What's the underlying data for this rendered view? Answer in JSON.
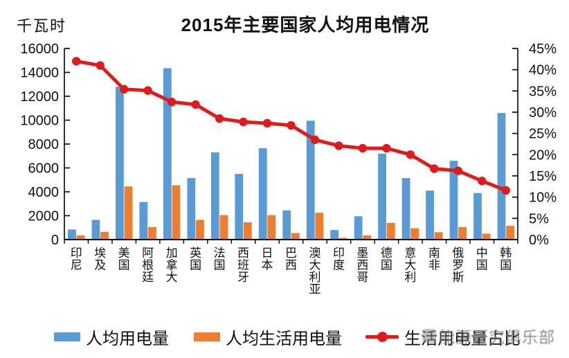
{
  "header": {
    "unit_label": "千瓦时",
    "title": "2015年主要国家人均用电情况"
  },
  "legend": {
    "bar1": "人均用电量",
    "bar2": "人均生活用电量",
    "line": "生活用电量占比"
  },
  "watermark": {
    "text": "能源研究俱乐部"
  },
  "colors": {
    "bar1": "#5B9BD5",
    "bar2": "#ED7D31",
    "line": "#E01B1B",
    "axis": "#000000"
  },
  "chart_data": {
    "type": "bar",
    "subtype": "grouped bars with secondary-axis line",
    "title": "2015年主要国家人均用电情况",
    "unit": "千瓦时",
    "categories": [
      "印尼",
      "埃及",
      "美国",
      "阿根廷",
      "加拿大",
      "英国",
      "法国",
      "西班牙",
      "日本",
      "巴西",
      "澳大利亚",
      "印度",
      "墨西哥",
      "德国",
      "意大利",
      "南非",
      "俄罗斯",
      "中国",
      "韩国"
    ],
    "series": [
      {
        "name": "人均用电量",
        "type": "bar",
        "axis": "left",
        "values": [
          850,
          1650,
          12800,
          3150,
          14350,
          5150,
          7300,
          5500,
          7650,
          2450,
          9950,
          800,
          1950,
          7200,
          5150,
          4100,
          6600,
          3900,
          10600
        ]
      },
      {
        "name": "人均生活用电量",
        "type": "bar",
        "axis": "left",
        "values": [
          350,
          650,
          4450,
          1050,
          4550,
          1650,
          2050,
          1450,
          2050,
          550,
          2250,
          150,
          350,
          1400,
          950,
          620,
          1050,
          500,
          1150
        ]
      },
      {
        "name": "生活用电量占比",
        "type": "line",
        "axis": "right",
        "values": [
          42,
          41,
          35.4,
          35.1,
          32.4,
          31.8,
          28.5,
          27.7,
          27.4,
          26.9,
          23.5,
          22.1,
          21.5,
          21.5,
          20,
          16.7,
          16.2,
          13.8,
          11.6
        ]
      }
    ],
    "left_axis": {
      "label": "千瓦时",
      "min": 0,
      "max": 16000,
      "step": 2000,
      "tick_labels": [
        "0",
        "2000",
        "4000",
        "6000",
        "8000",
        "10000",
        "12000",
        "14000",
        "16000"
      ]
    },
    "right_axis": {
      "min": 0,
      "max": 45,
      "step": 5,
      "tick_labels": [
        "0%",
        "5%",
        "10%",
        "15%",
        "20%",
        "25%",
        "30%",
        "35%",
        "40%",
        "45%"
      ]
    },
    "grid": false,
    "legend_position": "bottom"
  }
}
